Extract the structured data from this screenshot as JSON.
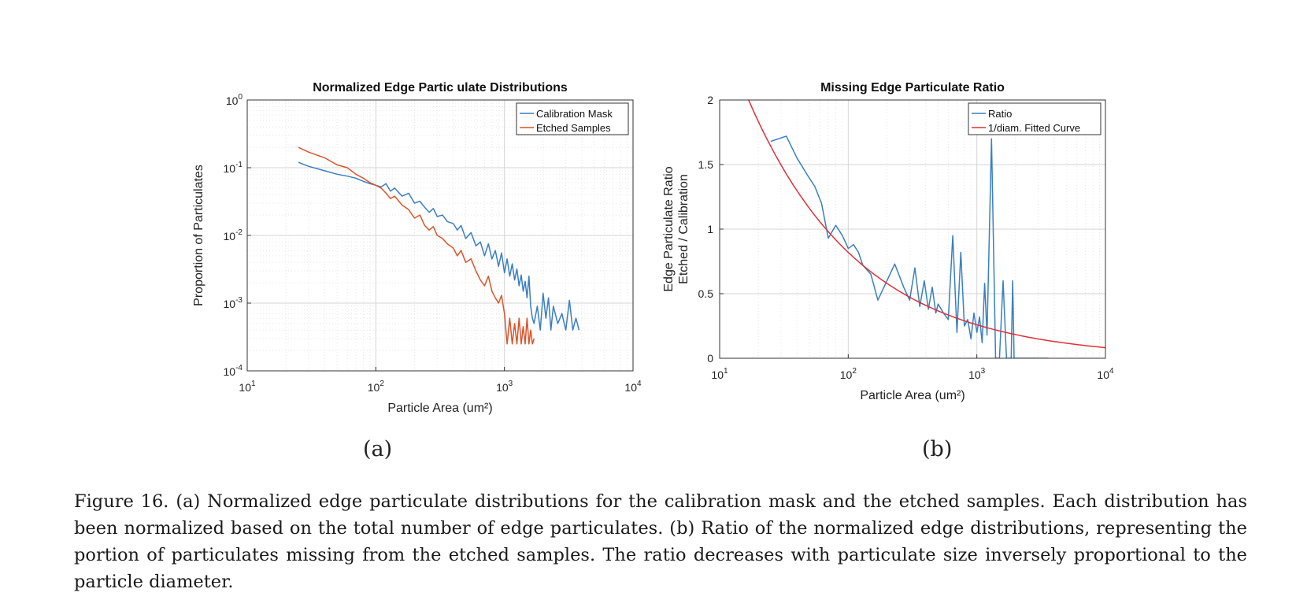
{
  "chart_data": [
    {
      "type": "line",
      "title": "Normalized Edge Partic ulate Distributions",
      "xlabel": "Particle Area (um²)",
      "ylabel": "Proportion of Particulates",
      "x_scale": "log",
      "y_scale": "log",
      "xlim": [
        10,
        10000
      ],
      "ylim": [
        0.0001,
        1
      ],
      "x_ticks": [
        {
          "base": "10",
          "exp": "1"
        },
        {
          "base": "10",
          "exp": "2"
        },
        {
          "base": "10",
          "exp": "3"
        },
        {
          "base": "10",
          "exp": "4"
        }
      ],
      "y_ticks": [
        {
          "base": "10",
          "exp": "0"
        },
        {
          "base": "10",
          "exp": "-1"
        },
        {
          "base": "10",
          "exp": "-2"
        },
        {
          "base": "10",
          "exp": "-3"
        },
        {
          "base": "10",
          "exp": "-4"
        }
      ],
      "grid": true,
      "legend_position": "top-right",
      "series": [
        {
          "name": "Calibration Mask",
          "color": "#3a7fc1",
          "x": [
            25,
            30,
            40,
            50,
            60,
            70,
            80,
            90,
            100,
            110,
            120,
            130,
            140,
            160,
            180,
            200,
            220,
            240,
            260,
            280,
            300,
            330,
            360,
            400,
            430,
            460,
            500,
            550,
            600,
            650,
            700,
            750,
            800,
            850,
            900,
            950,
            1000,
            1050,
            1100,
            1150,
            1200,
            1250,
            1300,
            1350,
            1400,
            1450,
            1500,
            1550,
            1600,
            1650,
            1700,
            1800,
            1900,
            2000,
            2100,
            2200,
            2300,
            2400,
            2600,
            2800,
            3000,
            3200,
            3400,
            3600,
            3800
          ],
          "y": [
            0.12,
            0.105,
            0.09,
            0.08,
            0.075,
            0.07,
            0.063,
            0.058,
            0.055,
            0.052,
            0.058,
            0.045,
            0.05,
            0.038,
            0.042,
            0.03,
            0.032,
            0.026,
            0.022,
            0.025,
            0.019,
            0.02,
            0.016,
            0.015,
            0.012,
            0.014,
            0.009,
            0.011,
            0.007,
            0.008,
            0.005,
            0.0075,
            0.0045,
            0.006,
            0.0035,
            0.0055,
            0.0028,
            0.0045,
            0.0025,
            0.0038,
            0.0022,
            0.0032,
            0.0018,
            0.0026,
            0.0015,
            0.0021,
            0.0012,
            0.0025,
            0.0009,
            0.0006,
            0.0005,
            0.0009,
            0.0004,
            0.0014,
            0.0006,
            0.0012,
            0.0004,
            0.0009,
            0.0005,
            0.0007,
            0.0004,
            0.0011,
            0.0004,
            0.0006,
            0.0004
          ]
        },
        {
          "name": "Etched Samples",
          "color": "#d9542a",
          "x": [
            25,
            30,
            40,
            50,
            60,
            70,
            80,
            90,
            100,
            110,
            120,
            130,
            140,
            160,
            180,
            200,
            220,
            240,
            260,
            280,
            300,
            330,
            360,
            400,
            430,
            460,
            500,
            550,
            600,
            650,
            700,
            750,
            800,
            850,
            900,
            950,
            1000,
            1050,
            1100,
            1150,
            1200,
            1250,
            1300,
            1350,
            1400,
            1450,
            1500,
            1550,
            1600,
            1650,
            1700
          ],
          "y": [
            0.2,
            0.17,
            0.14,
            0.11,
            0.1,
            0.08,
            0.07,
            0.06,
            0.055,
            0.05,
            0.042,
            0.035,
            0.038,
            0.028,
            0.024,
            0.018,
            0.02,
            0.014,
            0.012,
            0.0135,
            0.01,
            0.009,
            0.0075,
            0.0065,
            0.005,
            0.006,
            0.004,
            0.0045,
            0.003,
            0.0022,
            0.0018,
            0.0025,
            0.0015,
            0.0012,
            0.001,
            0.0013,
            0.0007,
            0.00025,
            0.0006,
            0.00025,
            0.0005,
            0.00025,
            0.0006,
            0.00025,
            0.00045,
            0.00025,
            0.0006,
            0.00025,
            0.0004,
            0.00025,
            0.0003
          ]
        }
      ]
    },
    {
      "type": "line",
      "title": "Missing Edge Particulate Ratio",
      "xlabel": "Particle Area (um²)",
      "ylabel_lines": [
        "Edge Particulate Ratio",
        "Etched / Calibration"
      ],
      "x_scale": "log",
      "y_scale": "linear",
      "xlim": [
        10,
        10000
      ],
      "ylim": [
        0,
        2
      ],
      "x_ticks": [
        {
          "base": "10",
          "exp": "1"
        },
        {
          "base": "10",
          "exp": "2"
        },
        {
          "base": "10",
          "exp": "3"
        },
        {
          "base": "10",
          "exp": "4"
        }
      ],
      "y_ticks": [
        "0",
        "0.5",
        "1",
        "1.5",
        "2"
      ],
      "y_tick_values": [
        0,
        0.5,
        1,
        1.5,
        2
      ],
      "grid": true,
      "legend_position": "top-right",
      "series": [
        {
          "name": "Ratio",
          "color": "#3a7fc1",
          "x": [
            25,
            33,
            40,
            48,
            55,
            62,
            70,
            80,
            90,
            100,
            110,
            120,
            130,
            150,
            170,
            200,
            230,
            270,
            300,
            330,
            360,
            390,
            420,
            450,
            480,
            500,
            550,
            600,
            650,
            700,
            750,
            800,
            850,
            900,
            950,
            1000,
            1050,
            1100,
            1150,
            1200,
            1300,
            1400,
            1500,
            1600,
            1700,
            1800,
            1850,
            1900,
            1950,
            2000,
            2100,
            2200,
            2300,
            2400,
            2500,
            2600,
            2700,
            2800,
            3000,
            3200,
            3400,
            3600
          ],
          "y": [
            1.68,
            1.72,
            1.55,
            1.42,
            1.33,
            1.2,
            0.93,
            1.03,
            0.95,
            0.85,
            0.88,
            0.82,
            0.72,
            0.65,
            0.45,
            0.6,
            0.73,
            0.55,
            0.45,
            0.7,
            0.4,
            0.6,
            0.38,
            0.55,
            0.35,
            0.42,
            0.35,
            0.3,
            0.95,
            0.2,
            0.82,
            0.25,
            0.3,
            0.15,
            0.35,
            0.2,
            0.32,
            0.12,
            0.58,
            0.18,
            1.7,
            0.0,
            0.0,
            0.6,
            0.0,
            0.0,
            0.0,
            0.6,
            0.0,
            0.0,
            0.0,
            0.0,
            0.0,
            0.0,
            0.0,
            0.0,
            0.0,
            0.0,
            0.0,
            0.0,
            0.0,
            0.0
          ]
        },
        {
          "name": "1/diam. Fitted Curve",
          "color": "#e0303a",
          "formula": "y = 8.2 / sqrt(x)"
        }
      ]
    }
  ],
  "labels": {
    "panel_a": "(a)",
    "panel_b": "(b)"
  },
  "caption": "Figure 16. (a) Normalized edge particulate distributions for the calibration mask and the etched samples. Each distribution has been normalized based on the total number of edge particulates. (b) Ratio of the normalized edge distributions, representing the portion of particulates missing from the etched samples. The ratio decreases with particulate size inversely proportional to the particle diameter."
}
